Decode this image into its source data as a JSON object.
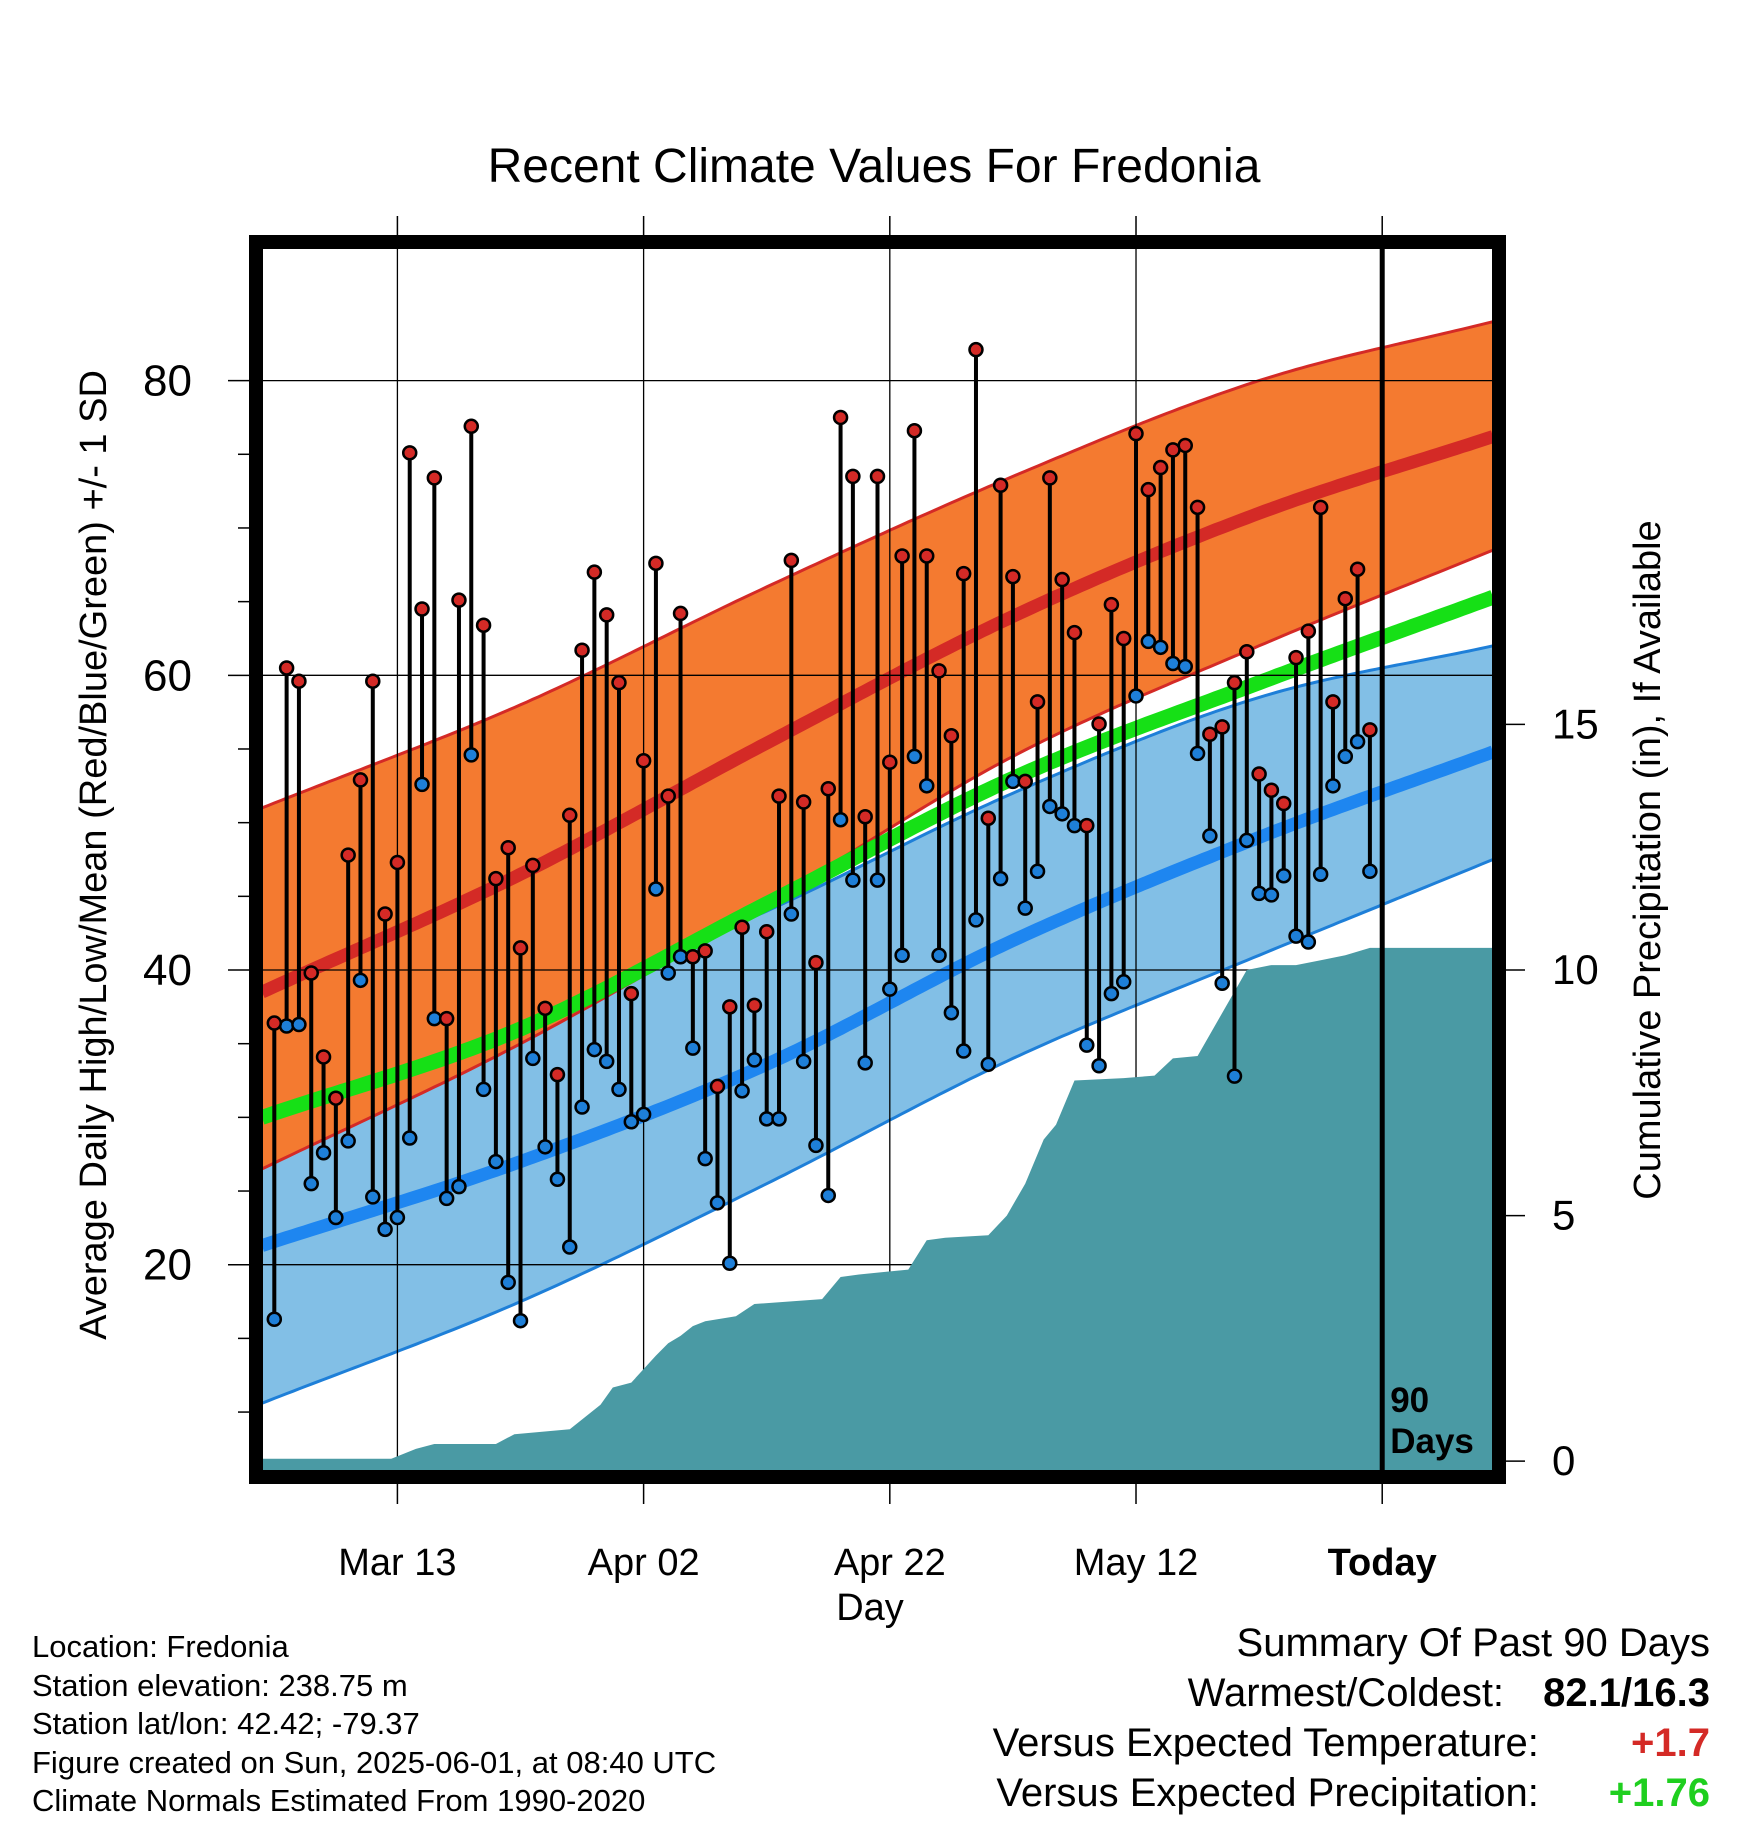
{
  "chart_data": {
    "type": "line",
    "title": "Recent Climate Values For Fredonia",
    "xlabel": "Day",
    "ylabel": "Average Daily High/Low/Mean (Red/Blue/Green) +/- 1 SD",
    "y2label": "Cumulative Precipitation (in), If Available",
    "x_tick_labels": [
      "Mar 13",
      "Apr 02",
      "Apr 22",
      "May 12",
      "Today"
    ],
    "x_ticks_day": [
      10,
      30,
      50,
      70,
      90
    ],
    "x_range_day": [
      -1,
      99
    ],
    "ylim": [
      6,
      89
    ],
    "y_ticks": [
      20,
      40,
      60,
      80
    ],
    "y2lim": [
      -0.2,
      24.7
    ],
    "y2_ticks": [
      0,
      5,
      10,
      15
    ],
    "today_marker_label": "90 Days",
    "grid": true,
    "normals": {
      "day": [
        -1,
        20,
        40,
        60,
        80,
        99
      ],
      "high_mean": [
        38.5,
        46.5,
        55.4,
        64.0,
        71.0,
        76.2
      ],
      "high_upper": [
        51.0,
        58.0,
        66.0,
        73.5,
        80.0,
        84.0
      ],
      "high_lower": [
        26.5,
        35.0,
        44.5,
        54.5,
        62.0,
        68.5
      ],
      "avg_mean": [
        30.0,
        36.0,
        44.5,
        53.0,
        59.5,
        65.3
      ],
      "low_mean": [
        21.3,
        27.0,
        33.6,
        42.0,
        49.0,
        54.8
      ],
      "low_upper": [
        32.5,
        37.0,
        44.0,
        52.0,
        58.5,
        62.0
      ],
      "low_lower": [
        10.6,
        17.5,
        25.5,
        34.0,
        41.0,
        47.5
      ]
    },
    "series": [
      {
        "name": "High",
        "color": "#d42a26",
        "values": [
          36.4,
          60.5,
          59.6,
          39.8,
          34.1,
          31.3,
          47.8,
          52.9,
          59.6,
          43.8,
          47.3,
          75.1,
          64.5,
          73.4,
          36.7,
          65.1,
          76.9,
          63.4,
          46.2,
          48.3,
          41.5,
          47.1,
          37.4,
          32.9,
          50.5,
          61.7,
          67.0,
          64.1,
          59.5,
          38.4,
          54.2,
          67.6,
          51.8,
          64.2,
          40.9,
          41.3,
          32.1,
          37.5,
          42.9,
          37.6,
          42.6,
          51.8,
          67.8,
          51.4,
          40.5,
          52.3,
          77.5,
          73.5,
          50.4,
          73.5,
          54.1,
          68.1,
          76.6,
          68.1,
          60.3,
          55.9,
          66.9,
          82.1,
          50.3,
          72.9,
          66.7,
          52.8,
          58.2,
          73.4,
          66.5,
          62.9,
          49.8,
          56.7,
          64.8,
          62.5,
          76.4,
          72.6,
          74.1,
          75.3,
          75.6,
          71.4,
          56.0,
          56.5,
          59.5,
          61.6,
          53.3,
          52.2,
          51.3,
          61.2,
          63.0,
          71.4,
          58.2,
          65.2,
          67.2,
          56.3
        ]
      },
      {
        "name": "Low",
        "color": "#1e7fd8",
        "values": [
          16.3,
          36.2,
          36.3,
          25.5,
          27.6,
          23.2,
          28.4,
          39.3,
          24.6,
          22.4,
          23.2,
          28.6,
          52.6,
          36.7,
          24.5,
          25.3,
          54.6,
          31.9,
          27.0,
          18.8,
          16.2,
          34.0,
          28.0,
          25.8,
          21.2,
          30.7,
          34.6,
          33.8,
          31.9,
          29.7,
          30.2,
          45.5,
          39.8,
          40.9,
          34.7,
          27.2,
          24.2,
          20.1,
          31.8,
          33.9,
          29.9,
          29.9,
          43.8,
          33.8,
          28.1,
          24.7,
          50.2,
          46.1,
          33.7,
          46.1,
          38.7,
          41.0,
          54.5,
          52.5,
          41.0,
          37.1,
          34.5,
          43.4,
          33.6,
          46.2,
          52.8,
          44.2,
          46.7,
          51.1,
          50.6,
          49.8,
          34.9,
          33.5,
          38.4,
          39.2,
          58.6,
          62.3,
          61.9,
          60.8,
          60.6,
          54.7,
          49.1,
          39.1,
          32.8,
          48.8,
          45.2,
          45.1,
          46.4,
          42.3,
          41.9,
          46.5,
          52.5,
          54.5,
          55.5,
          46.7
        ]
      },
      {
        "name": "Cumulative Precipitation",
        "color": "#4a9aa4",
        "x_day": [
          -1,
          9.5,
          11.5,
          13,
          18,
          19.5,
          24,
          26.5,
          27.5,
          29,
          31,
          32,
          33,
          34,
          35,
          37.5,
          39,
          44.5,
          46,
          47.5,
          51.5,
          53,
          54.5,
          58,
          59.5,
          61,
          62.5,
          63.5,
          65,
          69,
          71.5,
          73,
          75,
          79,
          81,
          83,
          85,
          87,
          89,
          99
        ],
        "values": [
          0.05,
          0.05,
          0.25,
          0.35,
          0.35,
          0.55,
          0.65,
          1.15,
          1.5,
          1.6,
          2.15,
          2.4,
          2.55,
          2.75,
          2.85,
          2.95,
          3.2,
          3.3,
          3.75,
          3.8,
          3.9,
          4.5,
          4.55,
          4.6,
          5.0,
          5.65,
          6.55,
          6.85,
          7.75,
          7.8,
          7.85,
          8.2,
          8.25,
          10.0,
          10.1,
          10.1,
          10.2,
          10.3,
          10.45,
          10.45
        ]
      }
    ]
  },
  "info": {
    "location": "Location: Fredonia",
    "elevation": "Station elevation: 238.75 m",
    "latlon": "Station lat/lon: 42.42; -79.37",
    "created": "Figure created on Sun, 2025-06-01, at 08:40 UTC",
    "normals": "Climate Normals Estimated From 1990-2020"
  },
  "summary": {
    "title": "Summary Of Past 90 Days",
    "warm_cold_label": "Warmest/Coldest:",
    "warm_cold_value": "82.1/16.3",
    "temp_label": "Versus Expected Temperature:",
    "temp_value": "+1.7",
    "temp_color": "#d42a26",
    "precip_label": "Versus Expected Precipitation:",
    "precip_value": "+1.76",
    "precip_color": "#1fcf1f"
  }
}
